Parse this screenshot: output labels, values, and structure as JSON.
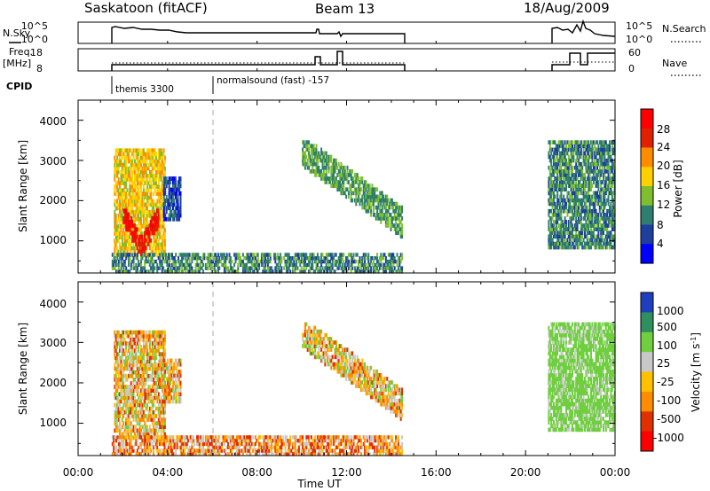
{
  "header": {
    "station": "Saskatoon (fitACF)",
    "beam": "Beam 13",
    "date": "18/Aug/2009"
  },
  "panels": {
    "nsky_label": "N.Sky",
    "nsky_ticks": [
      "10^5",
      "10^0"
    ],
    "nsearch_label": "N.Search",
    "nsearch_ticks": [
      "10^5",
      "10^0"
    ],
    "freq_label_1": "Freq.",
    "freq_label_2": "[MHz]",
    "freq_ticks": [
      "18",
      "8"
    ],
    "nave_label": "Nave",
    "nave_ticks": [
      "60",
      "0"
    ],
    "cpid_label": "CPID",
    "cpid_modes": [
      {
        "label": "themis 3300",
        "start_hour": 1.5
      },
      {
        "label": "normalsound (fast) -157",
        "start_hour": 6.0
      }
    ]
  },
  "xaxis": {
    "label": "Time UT",
    "ticks": [
      "00:00",
      "04:00",
      "08:00",
      "12:00",
      "16:00",
      "20:00",
      "00:00"
    ],
    "tick_hours": [
      0,
      4,
      8,
      12,
      16,
      20,
      24
    ],
    "range": [
      0,
      24
    ]
  },
  "colors": {
    "power": [
      "#0000ff",
      "#1f3f9f",
      "#2f7f6f",
      "#7fbf2f",
      "#ffd000",
      "#ff8c00",
      "#e02000",
      "#ff0000"
    ],
    "velocity": [
      "#ff0000",
      "#e03000",
      "#ff8c00",
      "#ffc000",
      "#c8c8c8",
      "#6fcf3f",
      "#2f8f5f",
      "#1f3fbf"
    ]
  },
  "chart_data": [
    {
      "type": "heatmap",
      "title": "",
      "xlabel": "Time UT",
      "ylabel": "Slant Range [km]",
      "ylim": [
        200,
        4500
      ],
      "yticks": [
        "1000",
        "2000",
        "3000",
        "4000"
      ],
      "colorbar": {
        "label": "Power [dB]",
        "ticks": [
          "4",
          "8",
          "12",
          "16",
          "20",
          "24",
          "28"
        ],
        "range": [
          0,
          32
        ]
      },
      "data_windows_hours": [
        [
          1.5,
          14.5
        ],
        [
          21.0,
          24.0
        ]
      ],
      "regions": [
        {
          "name": "early echo band",
          "t": [
            1.6,
            3.9
          ],
          "r": [
            600,
            3300
          ],
          "value_db": 18
        },
        {
          "name": "strong arc",
          "t": [
            2.0,
            3.6
          ],
          "r": [
            600,
            1800
          ],
          "value_db": 28
        },
        {
          "name": "scatter near 04:00",
          "t": [
            3.8,
            4.6
          ],
          "r": [
            1500,
            2600
          ],
          "value_db": 6
        },
        {
          "name": "near-range ground scatter",
          "t": [
            1.5,
            14.5
          ],
          "r": [
            200,
            700
          ],
          "value_db": 10
        },
        {
          "name": "midday diagonal band",
          "t": [
            10.0,
            14.5
          ],
          "r": [
            800,
            3500
          ],
          "value_db": 12
        },
        {
          "name": "late patch",
          "t": [
            21.0,
            24.0
          ],
          "r": [
            800,
            3500
          ],
          "value_db": 10
        }
      ]
    },
    {
      "type": "heatmap",
      "title": "",
      "xlabel": "Time UT",
      "ylabel": "Slant Range [km]",
      "ylim": [
        200,
        4500
      ],
      "yticks": [
        "1000",
        "2000",
        "3000",
        "4000"
      ],
      "colorbar": {
        "label": "Velocity [m s^-1]",
        "ticks": [
          "1000",
          "500",
          "100",
          "25",
          "-25",
          "-100",
          "-500",
          "-1000"
        ],
        "range": [
          -1500,
          1500
        ]
      },
      "data_windows_hours": [
        [
          1.5,
          14.5
        ],
        [
          21.0,
          24.0
        ]
      ],
      "regions": [
        {
          "name": "early echo band",
          "t": [
            1.6,
            3.9
          ],
          "r": [
            600,
            3300
          ],
          "value_ms": 0
        },
        {
          "name": "scatter near 04:00",
          "t": [
            3.8,
            4.6
          ],
          "r": [
            1500,
            2600
          ],
          "value_ms": 0
        },
        {
          "name": "near-range ground scatter",
          "t": [
            1.5,
            14.5
          ],
          "r": [
            200,
            700
          ],
          "value_ms": -50
        },
        {
          "name": "midday diagonal band",
          "t": [
            10.0,
            14.5
          ],
          "r": [
            800,
            3500
          ],
          "value_ms": 0
        },
        {
          "name": "late patch",
          "t": [
            21.0,
            24.0
          ],
          "r": [
            800,
            3500
          ],
          "value_ms": 200
        }
      ]
    }
  ]
}
